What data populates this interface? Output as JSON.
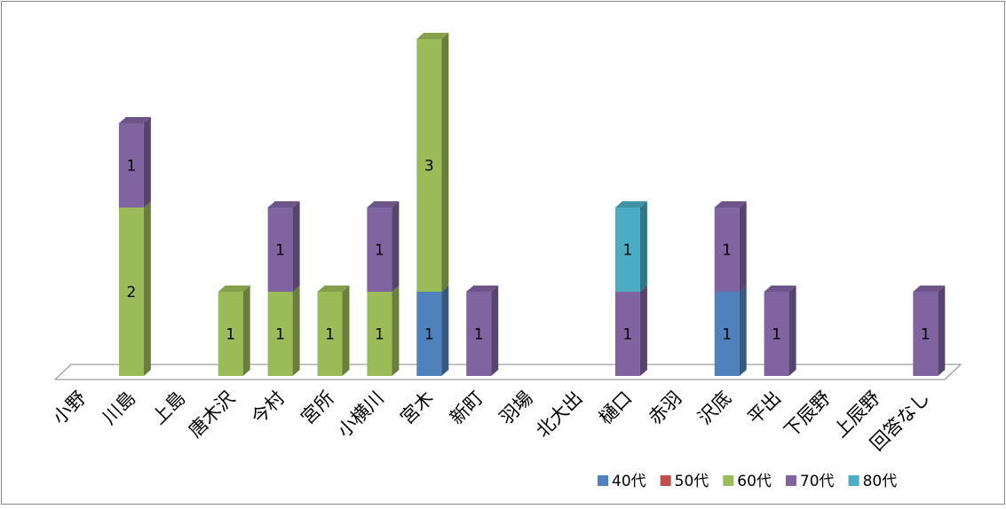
{
  "chart_data": {
    "type": "bar",
    "stacked": true,
    "three_d": true,
    "title": "",
    "xlabel": "",
    "ylabel": "",
    "ylim": [
      0,
      4
    ],
    "grid": false,
    "legend_position": "bottom-right",
    "categories": [
      "小野",
      "川島",
      "上島",
      "唐木沢",
      "今村",
      "宮所",
      "小横川",
      "宮木",
      "新町",
      "羽場",
      "北大出",
      "樋口",
      "赤羽",
      "沢底",
      "平出",
      "下辰野",
      "上辰野",
      "回答なし"
    ],
    "series": [
      {
        "name": "40代",
        "color": "#4f81bd",
        "values": [
          0,
          0,
          0,
          0,
          0,
          0,
          0,
          1,
          0,
          0,
          0,
          0,
          0,
          1,
          0,
          0,
          0,
          0
        ]
      },
      {
        "name": "50代",
        "color": "#c0504d",
        "values": [
          0,
          0,
          0,
          0,
          0,
          0,
          0,
          0,
          0,
          0,
          0,
          0,
          0,
          0,
          0,
          0,
          0,
          0
        ]
      },
      {
        "name": "60代",
        "color": "#9bbb59",
        "values": [
          0,
          2,
          0,
          1,
          1,
          1,
          1,
          3,
          0,
          0,
          0,
          0,
          0,
          0,
          0,
          0,
          0,
          0
        ]
      },
      {
        "name": "70代",
        "color": "#8064a2",
        "values": [
          0,
          1,
          0,
          0,
          1,
          0,
          1,
          0,
          1,
          0,
          0,
          1,
          0,
          1,
          1,
          0,
          0,
          1
        ]
      },
      {
        "name": "80代",
        "color": "#4bacc6",
        "values": [
          0,
          0,
          0,
          0,
          0,
          0,
          0,
          0,
          0,
          0,
          0,
          1,
          0,
          0,
          0,
          0,
          0,
          0
        ]
      }
    ]
  }
}
